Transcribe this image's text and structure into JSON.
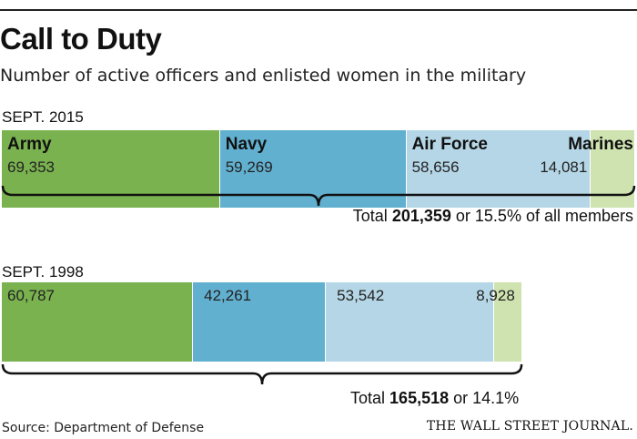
{
  "title": "Call to Duty",
  "subtitle": "Number of active officers and enlisted women in the military",
  "chart_data": {
    "type": "bar",
    "stacked": "horizontal-100",
    "categories": [
      "Army",
      "Navy",
      "Air Force",
      "Marines"
    ],
    "colors": [
      "#7ab24f",
      "#62b0d0",
      "#b5d6e6",
      "#cfe3b0"
    ],
    "series": [
      {
        "name": "SEPT. 2015",
        "values": [
          69353,
          59269,
          58656,
          14081
        ],
        "value_labels": [
          "69,353",
          "59,269",
          "58,656",
          "14,081"
        ],
        "total_prefix": "Total",
        "total_value": "201,359",
        "total_suffix": "or 15.5% of all members"
      },
      {
        "name": "SEPT. 1998",
        "values": [
          60787,
          42261,
          53542,
          8928
        ],
        "value_labels": [
          "60,787",
          "42,261",
          "53,542",
          "8,928"
        ],
        "total_prefix": "Total",
        "total_value": "165,518",
        "total_suffix": "or 14.1%"
      }
    ]
  },
  "source": "Source: Department of Defense",
  "logo": "THE WALL STREET JOURNAL."
}
